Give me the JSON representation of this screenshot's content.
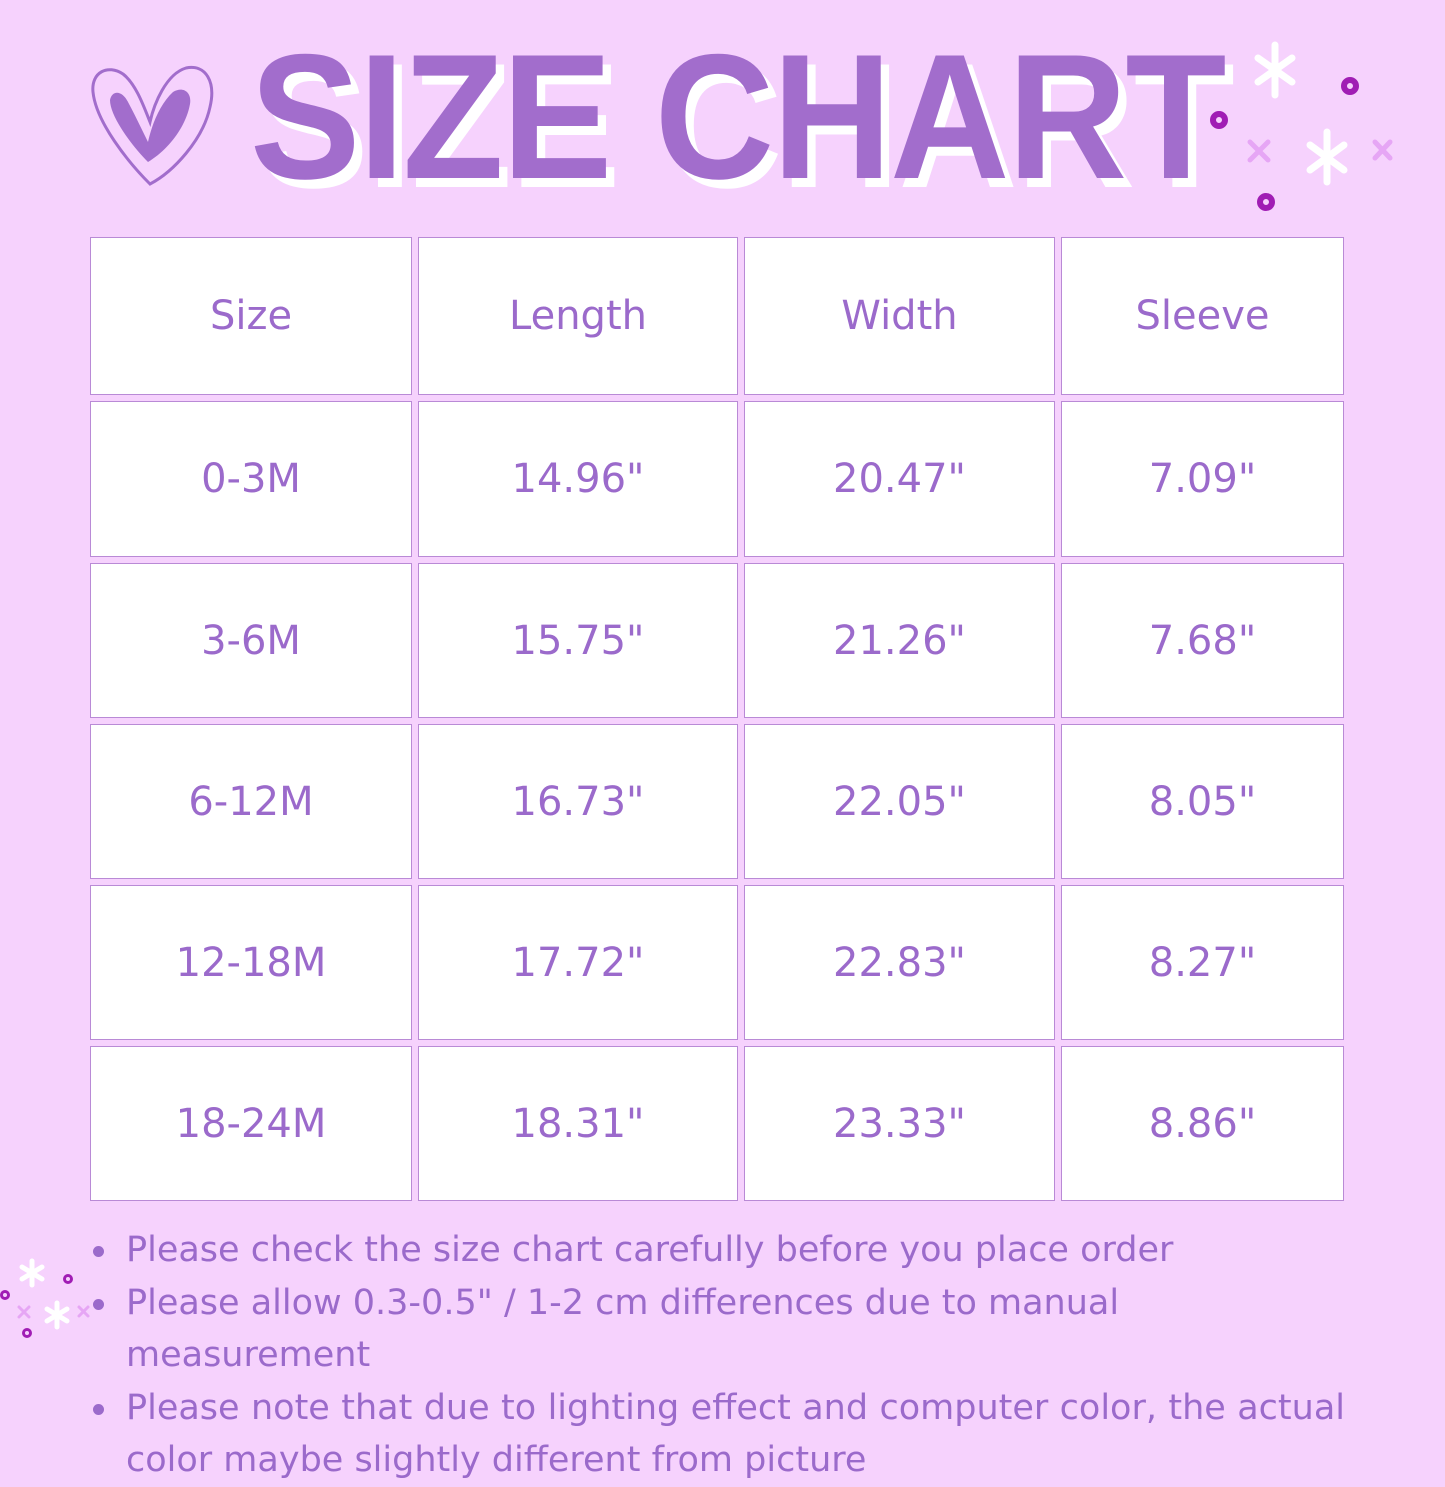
{
  "title": "SIZE CHART",
  "colors": {
    "background": "#f6d2fd",
    "accent": "#a26dcc",
    "cell_background": "#ffffff",
    "sparkle_dot": "#a01db4"
  },
  "icons": [
    "heart-icon",
    "sparkle-icon",
    "dot-icon"
  ],
  "table": {
    "headers": [
      "Size",
      "Length",
      "Width",
      "Sleeve"
    ],
    "rows": [
      [
        "0-3M",
        "14.96\"",
        "20.47\"",
        "7.09\""
      ],
      [
        "3-6M",
        "15.75\"",
        "21.26\"",
        "7.68\""
      ],
      [
        "6-12M",
        "16.73\"",
        "22.05\"",
        "8.05\""
      ],
      [
        "12-18M",
        "17.72\"",
        "22.83\"",
        "8.27\""
      ],
      [
        "18-24M",
        "18.31\"",
        "23.33\"",
        "8.86\""
      ]
    ]
  },
  "notes": [
    "Please check the size chart carefully before you place order",
    "Please allow 0.3-0.5\" / 1-2 cm differences due to manual measurement",
    "Please note that due to lighting effect and computer color, the actual color maybe slightly different from picture"
  ]
}
